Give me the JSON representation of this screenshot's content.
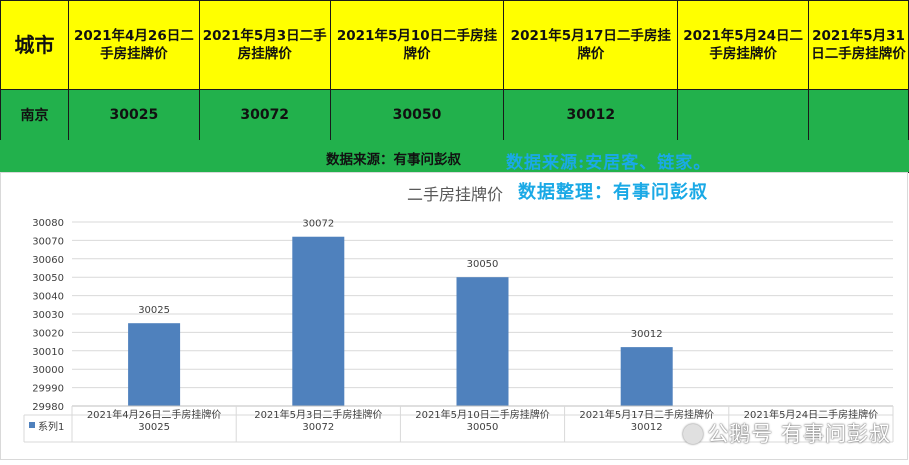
{
  "table": {
    "headers": [
      "城市",
      "2021年4月26日二手房挂牌价",
      "2021年5月3日二手房挂牌价",
      "2021年5月10日二手房挂牌价",
      "2021年5月17日二手房挂牌价",
      "2021年5月24日二手房挂牌价",
      "2021年5月31日二手房挂牌价"
    ],
    "rows": [
      [
        "南京",
        "30025",
        "30072",
        "30050",
        "30012",
        "",
        ""
      ]
    ]
  },
  "source_note": "数据来源：有事问彭叔",
  "watermarks": {
    "line1": "数据来源:安居客、链家。",
    "line2": "数据整理：有事问彭叔",
    "footer": "公鹅号 有事问彭叔"
  },
  "colors": {
    "header_bg": "#ffff00",
    "row_bg": "#22b14c",
    "bar": "#4f81bd",
    "watermark": "#1aa9e6"
  },
  "chart_data": {
    "type": "bar",
    "title": "二手房挂牌价",
    "categories": [
      "2021年4月26日二手房挂牌价",
      "2021年5月3日二手房挂牌价",
      "2021年5月10日二手房挂牌价",
      "2021年5月17日二手房挂牌价",
      "2021年5月24日二手房挂牌价"
    ],
    "series": [
      {
        "name": "系列1",
        "values": [
          30025,
          30072,
          30050,
          30012,
          null
        ]
      }
    ],
    "data_labels": [
      "30025",
      "30072",
      "30050",
      "30012"
    ],
    "table_values": [
      "30025",
      "30072",
      "30050",
      "30012",
      ""
    ],
    "ylim": [
      29980,
      30080
    ],
    "yticks": [
      29980,
      29990,
      30000,
      30010,
      30020,
      30030,
      30040,
      30050,
      30060,
      30070,
      30080
    ],
    "grid": true,
    "legend": "data-table"
  }
}
